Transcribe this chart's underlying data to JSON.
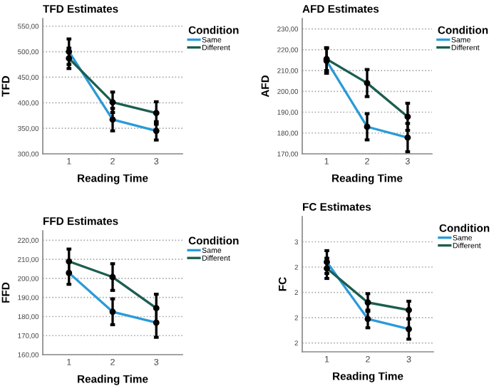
{
  "chart_data": [
    {
      "type": "line",
      "title": "TFD Estimates",
      "xlabel": "Reading Time",
      "ylabel": "TFD",
      "legend_title": "Condition",
      "legend": "right",
      "grid": "y",
      "marker": "circle",
      "categories": [
        "1",
        "2",
        "3"
      ],
      "ylim": [
        300,
        565
      ],
      "yticks": [
        {
          "value": 300,
          "label": "300,00"
        },
        {
          "value": 350,
          "label": "350,00"
        },
        {
          "value": 400,
          "label": "400,00"
        },
        {
          "value": 450,
          "label": "450,00"
        },
        {
          "value": 500,
          "label": "500,00"
        },
        {
          "value": 550,
          "label": "550,00"
        }
      ],
      "series": [
        {
          "name": "Same",
          "color": "#2a9ad8",
          "values": [
            500,
            367,
            345
          ],
          "errors": [
            25,
            22,
            18
          ]
        },
        {
          "name": "Different",
          "color": "#1b5e50",
          "values": [
            487,
            401,
            380
          ],
          "errors": [
            20,
            20,
            22
          ]
        }
      ]
    },
    {
      "type": "line",
      "title": "AFD Estimates",
      "xlabel": "Reading Time",
      "ylabel": "AFD",
      "legend_title": "Condition",
      "legend": "right",
      "grid": "y",
      "marker": "circle",
      "categories": [
        "1",
        "2",
        "3"
      ],
      "ylim": [
        170,
        235
      ],
      "yticks": [
        {
          "value": 170,
          "label": "170,00"
        },
        {
          "value": 180,
          "label": "180,00"
        },
        {
          "value": 190,
          "label": "190,00"
        },
        {
          "value": 200,
          "label": "200,00"
        },
        {
          "value": 210,
          "label": "210,00"
        },
        {
          "value": 220,
          "label": "220,00"
        },
        {
          "value": 230,
          "label": "230,00"
        }
      ],
      "series": [
        {
          "name": "Same",
          "color": "#2a9ad8",
          "values": [
            214.7,
            183,
            177.8
          ],
          "errors": [
            6,
            6.3,
            6.8
          ]
        },
        {
          "name": "Different",
          "color": "#1b5e50",
          "values": [
            215.5,
            204,
            187.8
          ],
          "errors": [
            5.5,
            6.5,
            6.5
          ]
        }
      ]
    },
    {
      "type": "line",
      "title": "FFD Estimates",
      "xlabel": "Reading Time",
      "ylabel": "FFD",
      "legend_title": "Condition",
      "legend": "right",
      "grid": "y",
      "marker": "circle",
      "categories": [
        "1",
        "2",
        "3"
      ],
      "ylim": [
        160,
        225
      ],
      "yticks": [
        {
          "value": 160,
          "label": "160,00"
        },
        {
          "value": 170,
          "label": "170,00"
        },
        {
          "value": 180,
          "label": "180,00"
        },
        {
          "value": 190,
          "label": "190,00"
        },
        {
          "value": 200,
          "label": "200,00"
        },
        {
          "value": 210,
          "label": "210,00"
        },
        {
          "value": 220,
          "label": "220,00"
        }
      ],
      "series": [
        {
          "name": "Same",
          "color": "#2a9ad8",
          "values": [
            202.9,
            182.5,
            176.8
          ],
          "errors": [
            6,
            6.8,
            7.7
          ]
        },
        {
          "name": "Different",
          "color": "#1b5e50",
          "values": [
            208.9,
            200.7,
            184.4
          ],
          "errors": [
            6.5,
            7,
            7.3
          ]
        }
      ]
    },
    {
      "type": "line",
      "title": "FC Estimates",
      "xlabel": "Reading Time",
      "ylabel": "FC",
      "legend_title": "Condition",
      "legend": "right",
      "grid": "y",
      "marker": "circle",
      "categories": [
        "1",
        "2",
        "3"
      ],
      "ylim": [
        1.73,
        2.8
      ],
      "yticks": [
        {
          "value": 1.8,
          "label": "2"
        },
        {
          "value": 2.0,
          "label": "2"
        },
        {
          "value": 2.2,
          "label": "2"
        },
        {
          "value": 2.4,
          "label": "2"
        },
        {
          "value": 2.6,
          "label": "3"
        }
      ],
      "series": [
        {
          "name": "Same",
          "color": "#2a9ad8",
          "values": [
            2.44,
            1.99,
            1.91
          ],
          "errors": [
            0.09,
            0.07,
            0.08
          ]
        },
        {
          "name": "Different",
          "color": "#1b5e50",
          "values": [
            2.39,
            2.12,
            2.06
          ],
          "errors": [
            0.08,
            0.07,
            0.07
          ]
        }
      ]
    }
  ]
}
